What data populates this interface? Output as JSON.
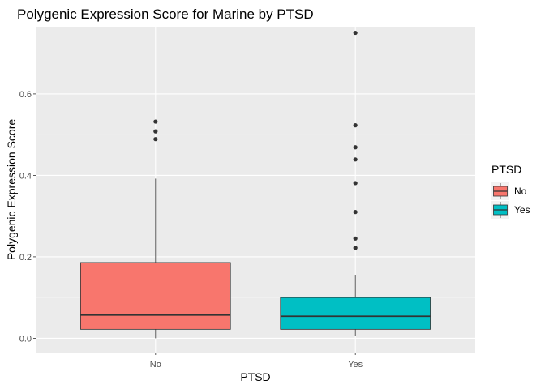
{
  "chart_data": {
    "type": "boxplot",
    "title": "Polygenic Expression Score for Marine by PTSD",
    "xlabel": "PTSD",
    "ylabel": "Polygenic Expression Score",
    "categories": [
      "No",
      "Yes"
    ],
    "ylim": [
      -0.035,
      0.765
    ],
    "yticks": [
      0.0,
      0.2,
      0.4,
      0.6
    ],
    "ytick_labels": [
      "0.0",
      "0.2",
      "0.4",
      "0.6"
    ],
    "grid": true,
    "legend": {
      "title": "PTSD",
      "position": "right",
      "entries": [
        {
          "label": "No",
          "color": "#F8766D"
        },
        {
          "label": "Yes",
          "color": "#00BFC4"
        }
      ]
    },
    "boxes": [
      {
        "category": "No",
        "color": "#F8766D",
        "whisker_low": 0.0,
        "q1": 0.022,
        "median": 0.057,
        "q3": 0.186,
        "whisker_high": 0.392,
        "outliers": [
          0.489,
          0.508,
          0.532
        ]
      },
      {
        "category": "Yes",
        "color": "#00BFC4",
        "whisker_low": 0.005,
        "q1": 0.022,
        "median": 0.054,
        "q3": 0.1,
        "whisker_high": 0.156,
        "outliers": [
          0.222,
          0.245,
          0.31,
          0.381,
          0.439,
          0.469,
          0.523,
          0.75
        ]
      }
    ]
  }
}
